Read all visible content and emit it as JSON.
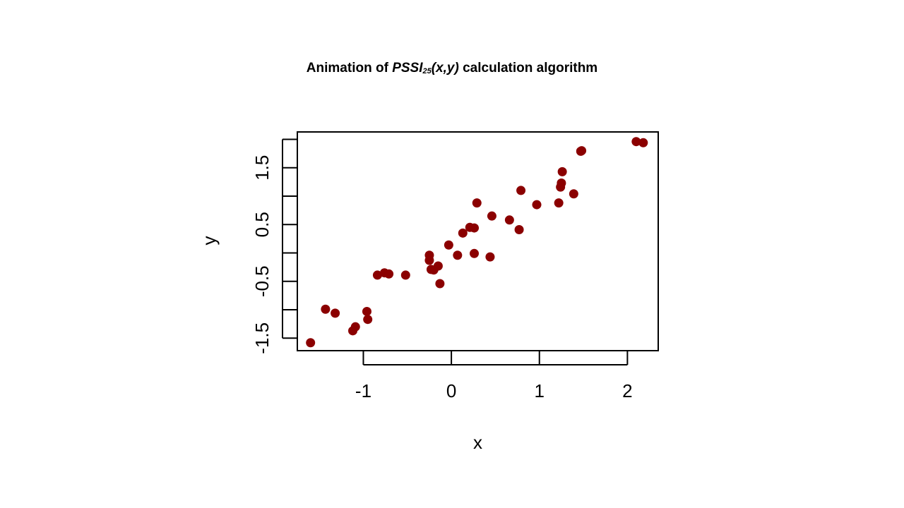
{
  "title": {
    "prefix": "Animation of ",
    "main": "PSSI",
    "subscript": "25",
    "args": "(x,y)",
    "suffix": " calculation algorithm"
  },
  "chart_data": {
    "type": "scatter",
    "xlabel": "x",
    "ylabel": "y",
    "xlim": [
      -1.75,
      2.35
    ],
    "ylim": [
      -1.72,
      2.13
    ],
    "xticks": [
      -1,
      0,
      1,
      2
    ],
    "xtick_labels": [
      "-1",
      "0",
      "1",
      "2"
    ],
    "yticks": [
      -1.5,
      -1.0,
      -0.5,
      0.0,
      0.5,
      1.0,
      1.5,
      2.0
    ],
    "ytick_labels": [
      "-1.5",
      "",
      "-0.5",
      "",
      "0.5",
      "",
      "1.5",
      ""
    ],
    "grid": false,
    "marker_color": "#8b0000",
    "series": [
      {
        "x": [
          -1.6,
          -1.43,
          -1.32,
          -1.12,
          -1.09,
          -0.96,
          -0.95,
          -0.84,
          -0.76,
          -0.71,
          -0.52,
          -0.25,
          -0.25,
          -0.23,
          -0.2,
          -0.15,
          -0.13,
          -0.03,
          0.07,
          0.13,
          0.21,
          0.26,
          0.26,
          0.29,
          0.44,
          0.46,
          0.66,
          0.77,
          0.79,
          0.97,
          1.22,
          1.24,
          1.25,
          1.26,
          1.39,
          1.47,
          1.48,
          2.1,
          2.18
        ],
        "y": [
          -1.58,
          -0.99,
          -1.06,
          -1.37,
          -1.3,
          -1.03,
          -1.17,
          -0.39,
          -0.35,
          -0.37,
          -0.39,
          -0.04,
          -0.13,
          -0.29,
          -0.3,
          -0.23,
          -0.54,
          0.14,
          -0.04,
          0.35,
          0.45,
          0.44,
          -0.01,
          0.88,
          -0.07,
          0.65,
          0.58,
          0.41,
          1.1,
          0.85,
          0.88,
          1.16,
          1.23,
          1.43,
          1.04,
          1.79,
          1.8,
          1.96,
          1.94
        ]
      }
    ]
  }
}
